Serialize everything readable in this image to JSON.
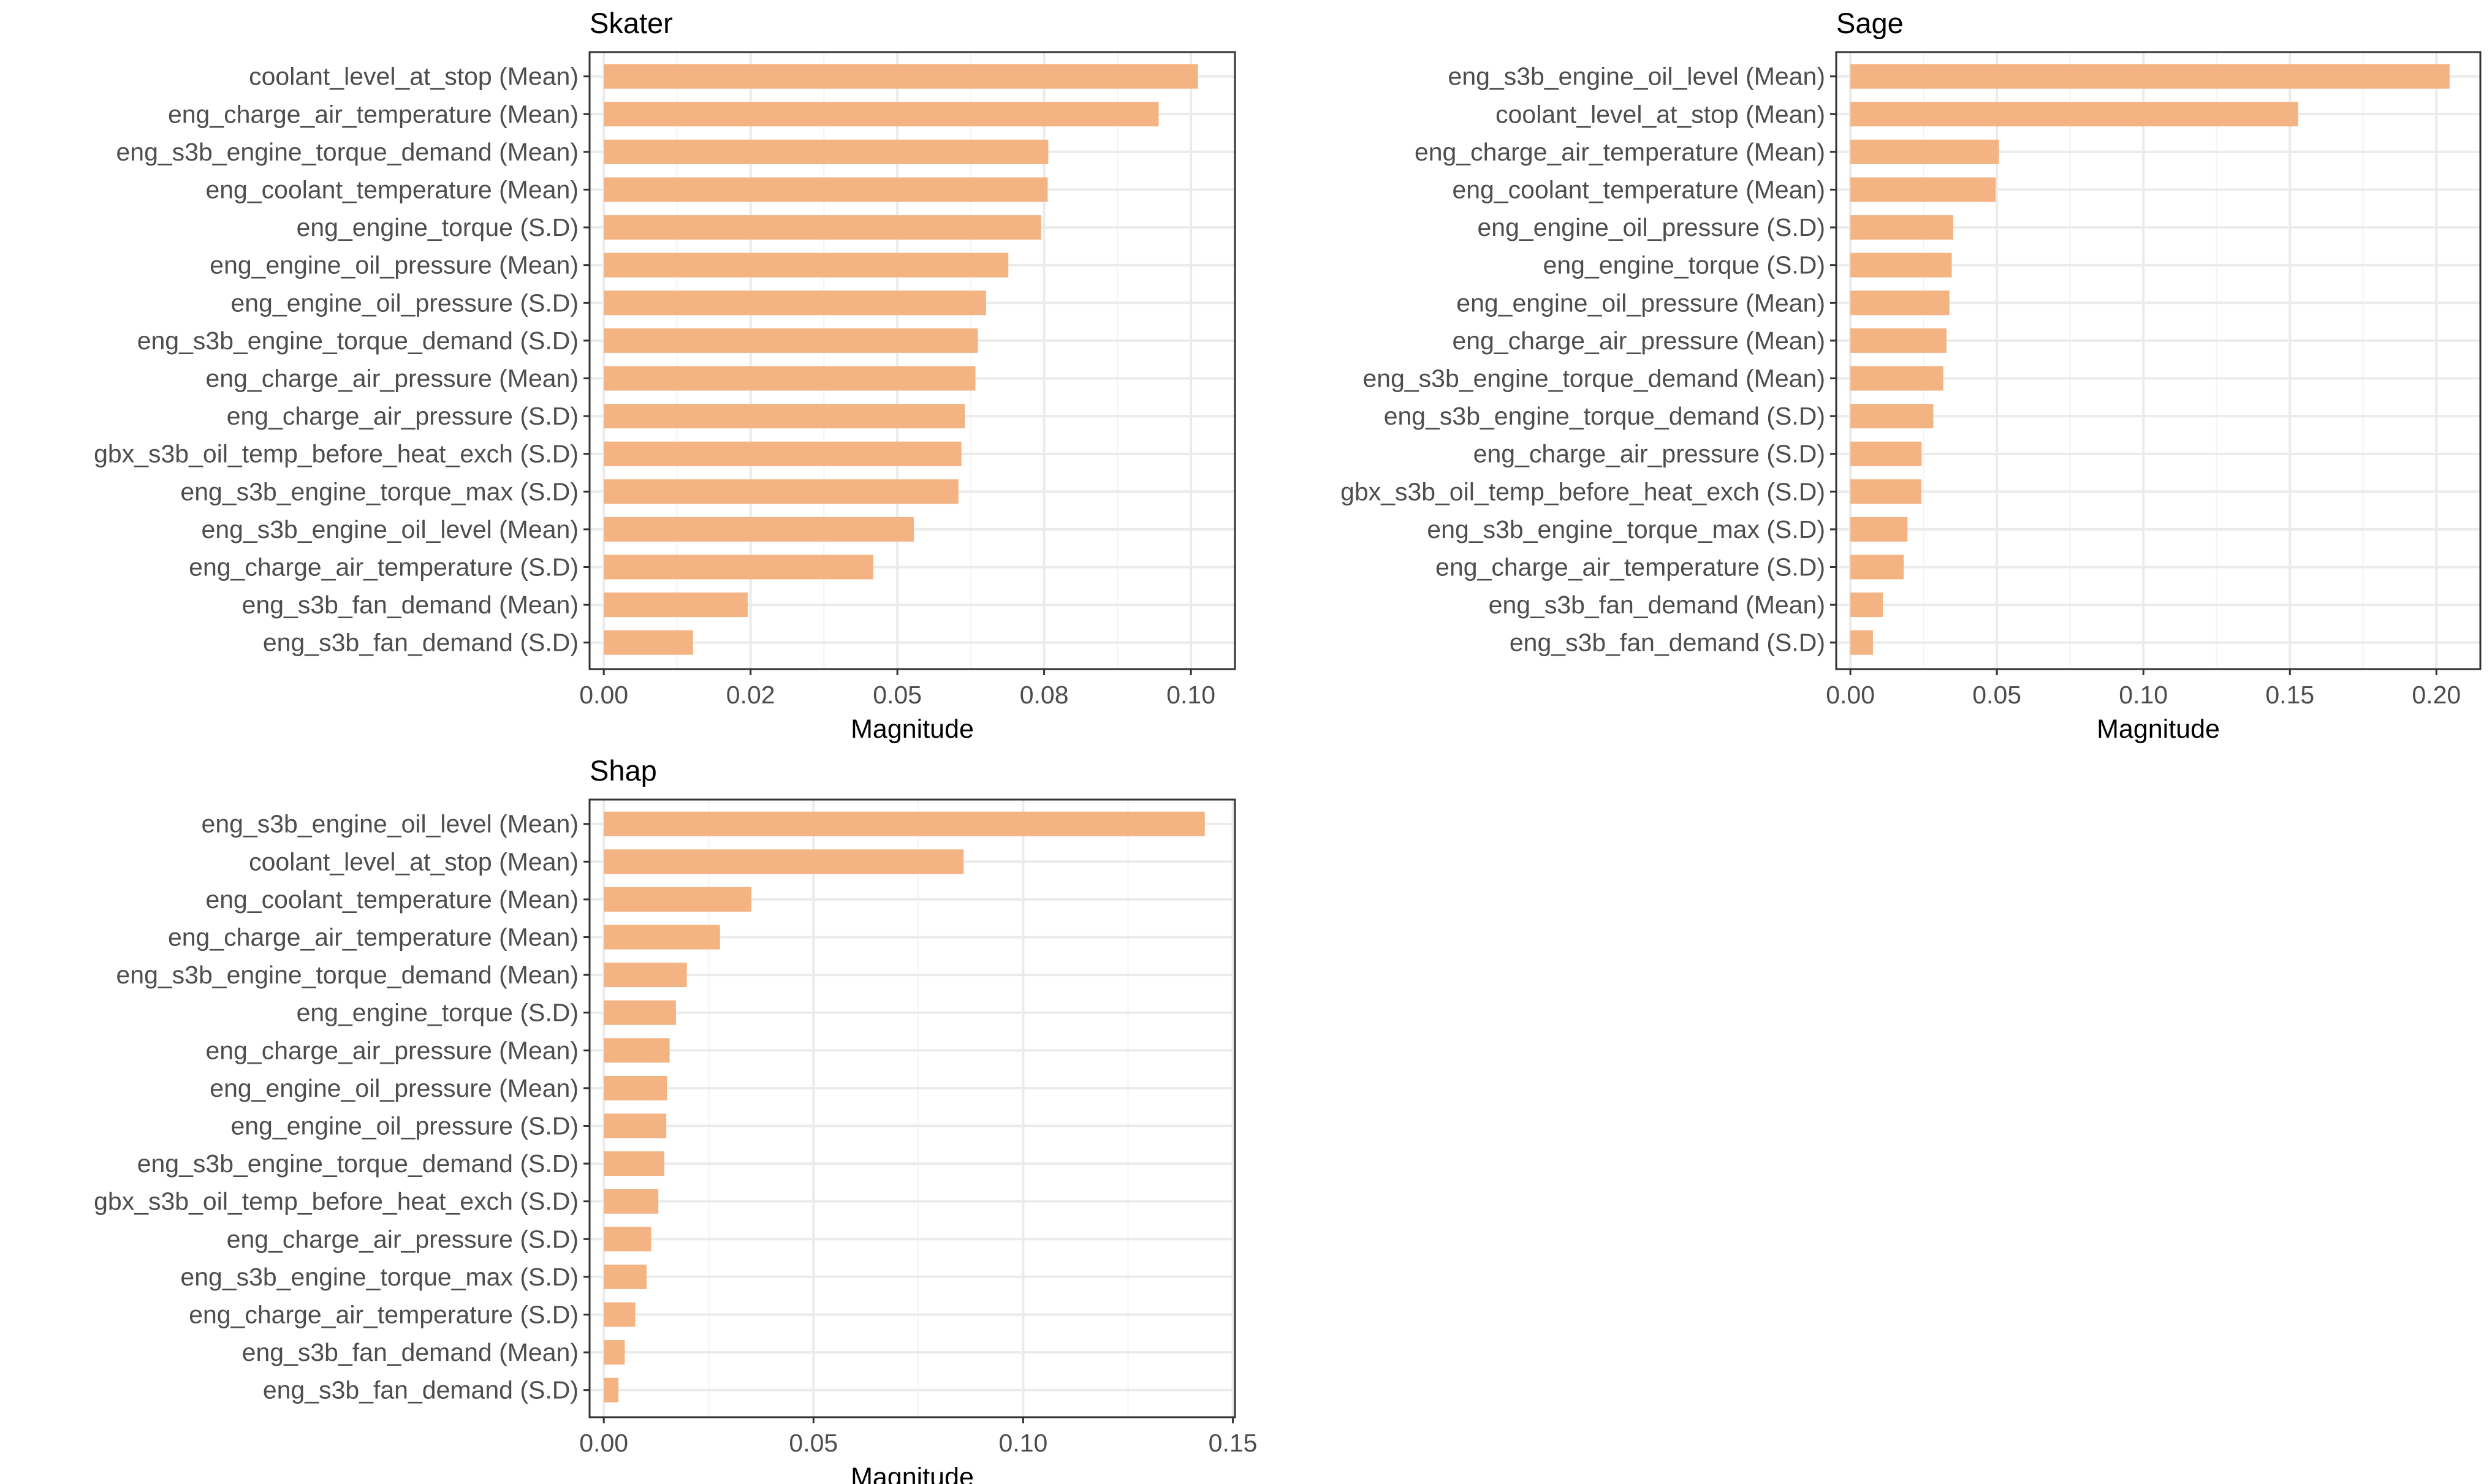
{
  "chart_data": [
    {
      "type": "bar",
      "orientation": "horizontal",
      "title": "Skater",
      "xlabel": "Magnitude",
      "ylabel": "",
      "xlim": [
        0,
        0.1075
      ],
      "xticks": [
        0.0,
        0.025,
        0.05,
        0.075,
        0.1
      ],
      "xtick_labels": [
        "0.00",
        "0.02",
        "0.05",
        "0.08",
        "0.10"
      ],
      "grid": true,
      "bar_color": "#F4B382",
      "categories": [
        "coolant_level_at_stop (Mean)",
        "eng_charge_air_temperature (Mean)",
        "eng_s3b_engine_torque_demand (Mean)",
        "eng_coolant_temperature (Mean)",
        "eng_engine_torque (S.D)",
        "eng_engine_oil_pressure (Mean)",
        "eng_engine_oil_pressure (S.D)",
        "eng_s3b_engine_torque_demand (S.D)",
        "eng_charge_air_pressure (Mean)",
        "eng_charge_air_pressure (S.D)",
        "gbx_s3b_oil_temp_before_heat_exch (S.D)",
        "eng_s3b_engine_torque_max (S.D)",
        "eng_s3b_engine_oil_level (Mean)",
        "eng_charge_air_temperature (S.D)",
        "eng_s3b_fan_demand (Mean)",
        "eng_s3b_fan_demand (S.D)"
      ],
      "values": [
        0.1012,
        0.0945,
        0.0757,
        0.0756,
        0.0745,
        0.0689,
        0.0651,
        0.0637,
        0.0633,
        0.0615,
        0.0609,
        0.0604,
        0.0528,
        0.0459,
        0.0245,
        0.0152
      ]
    },
    {
      "type": "bar",
      "orientation": "horizontal",
      "title": "Sage",
      "xlabel": "Magnitude",
      "ylabel": "",
      "xlim": [
        0,
        0.215
      ],
      "xticks": [
        0.0,
        0.05,
        0.1,
        0.15,
        0.2
      ],
      "xtick_labels": [
        "0.00",
        "0.05",
        "0.10",
        "0.15",
        "0.20"
      ],
      "grid": true,
      "bar_color": "#F4B382",
      "categories": [
        "eng_s3b_engine_oil_level (Mean)",
        "coolant_level_at_stop (Mean)",
        "eng_charge_air_temperature (Mean)",
        "eng_coolant_temperature (Mean)",
        "eng_engine_oil_pressure (S.D)",
        "eng_engine_torque (S.D)",
        "eng_engine_oil_pressure (Mean)",
        "eng_charge_air_pressure (Mean)",
        "eng_s3b_engine_torque_demand (Mean)",
        "eng_s3b_engine_torque_demand (S.D)",
        "eng_charge_air_pressure (S.D)",
        "gbx_s3b_oil_temp_before_heat_exch (S.D)",
        "eng_s3b_engine_torque_max (S.D)",
        "eng_charge_air_temperature (S.D)",
        "eng_s3b_fan_demand (Mean)",
        "eng_s3b_fan_demand (S.D)"
      ],
      "values": [
        0.2045,
        0.1528,
        0.0507,
        0.0496,
        0.0351,
        0.0346,
        0.0338,
        0.0328,
        0.0317,
        0.0283,
        0.0243,
        0.0242,
        0.0195,
        0.0182,
        0.0111,
        0.0077
      ]
    },
    {
      "type": "bar",
      "orientation": "horizontal",
      "title": "Shap",
      "xlabel": "Magnitude",
      "ylabel": "",
      "xlim": [
        0,
        0.1505
      ],
      "xticks": [
        0.0,
        0.05,
        0.1,
        0.15
      ],
      "xtick_labels": [
        "0.00",
        "0.05",
        "0.10",
        "0.15"
      ],
      "grid": true,
      "bar_color": "#F4B382",
      "categories": [
        "eng_s3b_engine_oil_level (Mean)",
        "coolant_level_at_stop (Mean)",
        "eng_coolant_temperature (Mean)",
        "eng_charge_air_temperature (Mean)",
        "eng_s3b_engine_torque_demand (Mean)",
        "eng_engine_torque (S.D)",
        "eng_charge_air_pressure (Mean)",
        "eng_engine_oil_pressure (Mean)",
        "eng_engine_oil_pressure (S.D)",
        "eng_s3b_engine_torque_demand (S.D)",
        "gbx_s3b_oil_temp_before_heat_exch (S.D)",
        "eng_charge_air_pressure (S.D)",
        "eng_s3b_engine_torque_max (S.D)",
        "eng_charge_air_temperature (S.D)",
        "eng_s3b_fan_demand (Mean)",
        "eng_s3b_fan_demand (S.D)"
      ],
      "values": [
        0.1433,
        0.0858,
        0.0352,
        0.0277,
        0.0198,
        0.0172,
        0.0157,
        0.0151,
        0.0149,
        0.0144,
        0.013,
        0.0113,
        0.0102,
        0.0075,
        0.005,
        0.0035
      ]
    }
  ]
}
